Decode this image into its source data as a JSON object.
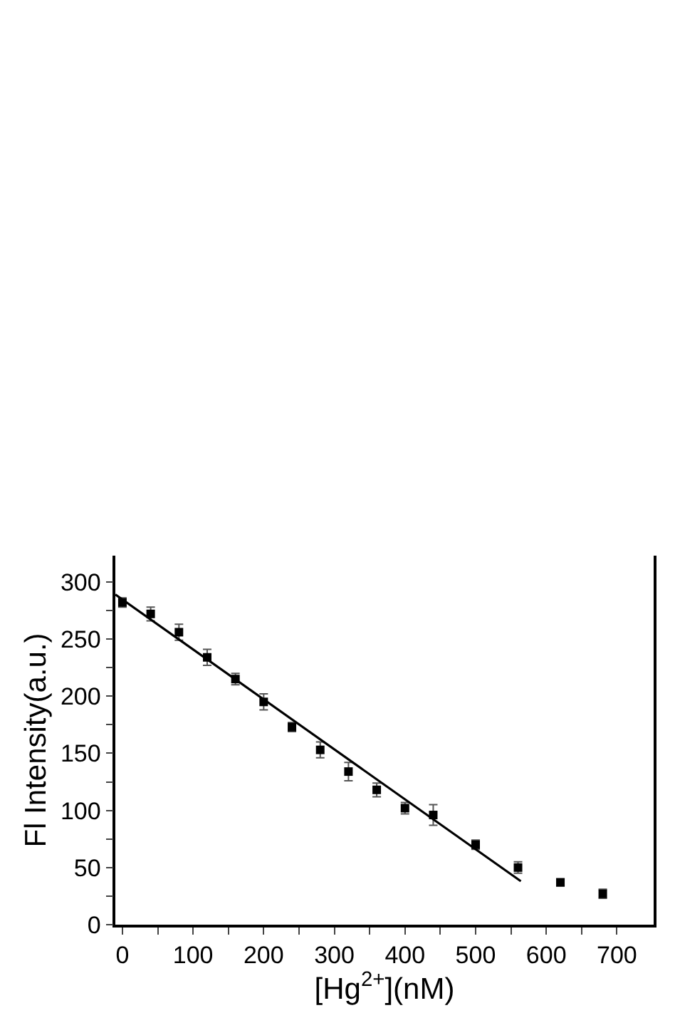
{
  "chart_data": {
    "type": "scatter",
    "xlabel": "[Hg$^{2+}$](nM)",
    "ylabel": "Fl Intensity(a.u.)",
    "xlim": [
      -10,
      752
    ],
    "ylim": [
      0,
      323
    ],
    "xticks": [
      0,
      {
        "value": 50,
        "label": null
      },
      100,
      {
        "value": 150,
        "label": null
      },
      200,
      {
        "value": 250,
        "label": null
      },
      300,
      {
        "value": 350,
        "label": null
      },
      400,
      {
        "value": 450,
        "label": null
      },
      500,
      {
        "value": 550,
        "label": null
      },
      600,
      {
        "value": 650,
        "label": null
      },
      700
    ],
    "yticks": [
      0,
      {
        "value": 25,
        "label": null
      },
      50,
      {
        "value": 75,
        "label": null
      },
      100,
      {
        "value": 125,
        "label": null
      },
      150,
      {
        "value": 175,
        "label": null
      },
      200,
      {
        "value": 225,
        "label": null
      },
      250,
      {
        "value": 275,
        "label": null
      },
      300
    ],
    "grid": false,
    "marker": "square",
    "series": [
      {
        "color": "#000000",
        "x": [
          0,
          40,
          80,
          120,
          160,
          200,
          240,
          280,
          320,
          360,
          400,
          440,
          500,
          560,
          620,
          680
        ],
        "values": [
          282,
          272,
          256,
          234,
          215,
          195,
          173,
          153,
          134,
          118,
          102,
          96,
          70,
          50,
          37,
          27
        ],
        "errors": [
          4,
          6,
          7,
          7,
          5,
          7,
          4,
          7,
          8,
          6,
          5,
          9,
          4,
          5,
          3,
          4
        ]
      },
      {
        "type": "line",
        "color": "#000000",
        "marker": "none",
        "line_style": "solid",
        "x": [
          -10,
          564
        ],
        "values": [
          289,
          38
        ]
      }
    ]
  }
}
